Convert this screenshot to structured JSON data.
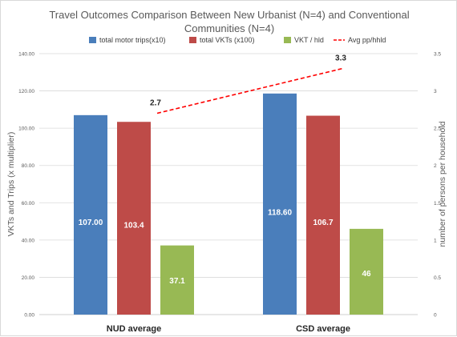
{
  "chart_data": {
    "type": "bar",
    "title": "Travel Outcomes Comparison Between New Urbanist (N=4) and Conventional Communities (N=4)",
    "categories": [
      "NUD average",
      "CSD average"
    ],
    "series": [
      {
        "name": "total motor trips(x10)",
        "values": [
          107.0,
          118.6
        ],
        "labels": [
          "107.00",
          "118.60"
        ],
        "color": "#4a7ebb",
        "axis": "left"
      },
      {
        "name": "total VKTs (x100)",
        "values": [
          103.4,
          106.7
        ],
        "labels": [
          "103.4",
          "106.7"
        ],
        "color": "#be4b48",
        "axis": "left"
      },
      {
        "name": "VKT / hld",
        "values": [
          37.1,
          46
        ],
        "labels": [
          "37.1",
          "46"
        ],
        "color": "#98b954",
        "axis": "left"
      },
      {
        "name": "Avg pp/hhld",
        "type": "line",
        "style": "dashed",
        "values": [
          2.7,
          3.3
        ],
        "labels": [
          "2.7",
          "3.3"
        ],
        "color": "#ff0000",
        "axis": "right"
      }
    ],
    "ylabel": "VKTs and Trips (x multiplier)",
    "ylabel_right": "number of persons per household",
    "ylim": [
      0,
      140
    ],
    "ylim_right": [
      0,
      3.5
    ],
    "yticks": [
      "0.00",
      "20.00",
      "40.00",
      "60.00",
      "80.00",
      "100.00",
      "120.00",
      "140.00"
    ],
    "yticks_right": [
      "0",
      "0.5",
      "1",
      "1.5",
      "2",
      "2.5",
      "3",
      "3.5"
    ],
    "grid": true,
    "legend": "top"
  }
}
